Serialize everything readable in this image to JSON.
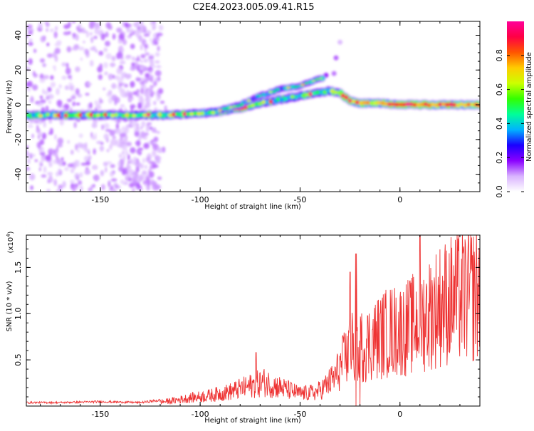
{
  "title": "C2E4.2023.005.09.41.R15",
  "chart_data": [
    {
      "type": "heatmap",
      "name": "spectrogram",
      "xlabel": "Height of straight line (km)",
      "ylabel": "Frequency (Hz)",
      "xlim": [
        -187,
        40
      ],
      "ylim": [
        -50,
        48
      ],
      "xticks": [
        -150,
        -100,
        -50,
        0
      ],
      "yticks": [
        -40,
        -20,
        0,
        20,
        40
      ],
      "grid": false,
      "ridge": {
        "x": [
          -187,
          -150,
          -120,
          -100,
          -90,
          -80,
          -70,
          -60,
          -50,
          -45,
          -40,
          -35,
          -30,
          -27,
          -25,
          -20,
          -10,
          0,
          10,
          20,
          30,
          40
        ],
        "freq": [
          -6,
          -6,
          -6,
          -5,
          -4,
          -2,
          1,
          3,
          5,
          6,
          7,
          8,
          7,
          4,
          2,
          1,
          1,
          0,
          0,
          0,
          0,
          0
        ]
      },
      "upper_branch": {
        "x": [
          -90,
          -80,
          -70,
          -60,
          -50,
          -45,
          -40,
          -35
        ],
        "freq": [
          -3,
          0,
          5,
          9,
          11,
          13,
          15,
          17
        ]
      },
      "colorbar": {
        "label": "Normalized spectral amplitude",
        "range": [
          0.0,
          1.0
        ],
        "ticks": [
          "0.0",
          "0.2",
          "0.4",
          "0.6",
          "0.8"
        ],
        "tick_values": [
          0.0,
          0.2,
          0.4,
          0.6,
          0.8
        ],
        "stops": [
          "#ffffff",
          "#d9b3ff",
          "#8a00ff",
          "#1a00ff",
          "#00b3ff",
          "#00ff99",
          "#33ff00",
          "#ccff00",
          "#ffcc00",
          "#ff5500",
          "#ff0044",
          "#ff0099"
        ]
      }
    },
    {
      "type": "line",
      "name": "snr",
      "xlabel": "Height of straight line (km)",
      "ylabel": "SNR (10 * v/v)",
      "y_exponent_label": "(x10",
      "y_exponent": "4",
      "y_exponent_close": ")",
      "xlim": [
        -187,
        40
      ],
      "ylim": [
        0,
        1.85
      ],
      "xticks": [
        -150,
        -100,
        -50,
        0
      ],
      "yticks": [
        0.5,
        1.0,
        1.5
      ],
      "ytick_labels": [
        "0.5",
        "1.0",
        "1.5"
      ],
      "color": "#ee3333",
      "grid": false,
      "series": [
        {
          "name": "SNR",
          "envelope_x": [
            -187,
            -170,
            -150,
            -130,
            -115,
            -105,
            -95,
            -85,
            -75,
            -68,
            -60,
            -50,
            -42,
            -38,
            -33,
            -30,
            -27,
            -25,
            -23,
            -20,
            -15,
            -10,
            -5,
            0,
            5,
            10,
            15,
            20,
            25,
            30,
            35,
            40
          ],
          "envelope_y": [
            0.04,
            0.04,
            0.05,
            0.04,
            0.08,
            0.13,
            0.17,
            0.23,
            0.32,
            0.38,
            0.3,
            0.2,
            0.22,
            0.3,
            0.45,
            0.62,
            0.8,
            0.95,
            0.9,
            0.95,
            1.02,
            1.12,
            1.2,
            1.22,
            1.28,
            1.38,
            1.5,
            1.62,
            1.7,
            1.75,
            1.78,
            1.8
          ],
          "spikes": [
            {
              "x": -72,
              "y": 0.58
            },
            {
              "x": -25,
              "y": 1.45
            },
            {
              "x": -22,
              "y": 1.65
            },
            {
              "x": 10,
              "y": 1.87
            }
          ]
        }
      ]
    }
  ]
}
